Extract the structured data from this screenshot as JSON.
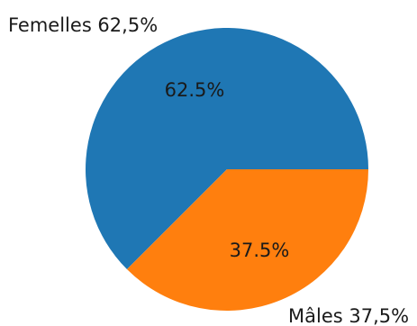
{
  "chart_data": {
    "type": "pie",
    "slices": [
      {
        "label": "Femelles 62,5%",
        "value": 62.5,
        "autopct": "62.5%",
        "color": "#1f77b4"
      },
      {
        "label": "Mâles 37,5%",
        "value": 37.5,
        "autopct": "37.5%",
        "color": "#ff7f0e"
      }
    ],
    "start_angle_deg": 0,
    "direction": "counterclockwise",
    "legend": "none"
  }
}
